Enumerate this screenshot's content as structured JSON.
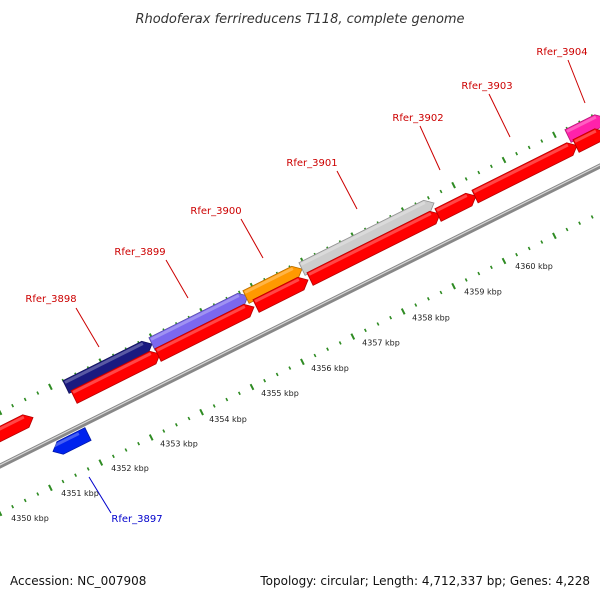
{
  "title": "Rhodoferax ferrireducens T118, complete genome",
  "footer": {
    "accession": "Accession: NC_007908",
    "topology": "Topology: circular; Length: 4,712,337 bp; Genes: 4,228"
  },
  "colors": {
    "forward_label": "#cc0000",
    "reverse_label": "#0000cc",
    "tick": "#2e8b22",
    "backbone": "#888888",
    "cds_red": "#ff0000",
    "cds_blue": "#0022ee",
    "cds_navy": "#1a1a80",
    "cds_purple": "#7b68ee",
    "cds_orange": "#ff9900",
    "cds_gray": "#cccccc",
    "cds_pink": "#ff22aa"
  },
  "axis": {
    "unit": "kbp",
    "labels": [
      "4350 kbp",
      "4351 kbp",
      "4352 kbp",
      "4353 kbp",
      "4354 kbp",
      "4355 kbp",
      "4356 kbp",
      "4357 kbp",
      "4358 kbp",
      "4359 kbp",
      "4360 kbp"
    ]
  },
  "genes": [
    {
      "name": "Rfer_3897",
      "strand": "reverse",
      "color": "cds_blue"
    },
    {
      "name": "Rfer_3898",
      "strand": "forward",
      "color": "cds_navy"
    },
    {
      "name": "Rfer_3899",
      "strand": "forward",
      "color": "cds_purple"
    },
    {
      "name": "Rfer_3900",
      "strand": "forward",
      "color": "cds_orange"
    },
    {
      "name": "Rfer_3901",
      "strand": "forward",
      "color": "cds_gray"
    },
    {
      "name": "Rfer_3902",
      "strand": "forward",
      "color": "cds_red"
    },
    {
      "name": "Rfer_3903",
      "strand": "forward",
      "color": "cds_red"
    },
    {
      "name": "Rfer_3904",
      "strand": "forward",
      "color": "cds_pink"
    }
  ]
}
